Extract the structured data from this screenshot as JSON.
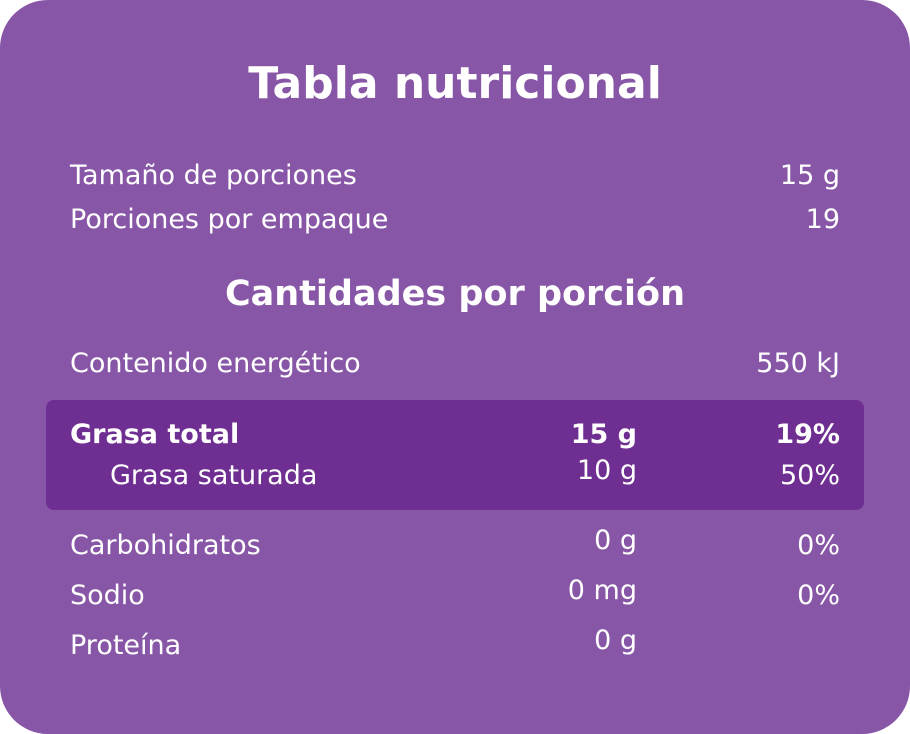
{
  "title": "Tabla nutricional",
  "serving": {
    "size_label": "Tamaño de porciones",
    "size_value": "15 g",
    "per_package_label": "Porciones por empaque",
    "per_package_value": "19"
  },
  "subtitle": "Cantidades por porción",
  "energy": {
    "label": "Contenido energético",
    "value": "550 kJ"
  },
  "fat": {
    "total_label": "Grasa total",
    "total_amount": "15 g",
    "total_pct": "19%",
    "saturated_label": "Grasa saturada",
    "saturated_amount": "10 g",
    "saturated_pct": "50%"
  },
  "rows": [
    {
      "label": "Carbohidratos",
      "amount": "0 g",
      "pct": "0%"
    },
    {
      "label": "Sodio",
      "amount": "0 mg",
      "pct": "0%"
    },
    {
      "label": "Proteína",
      "amount": "0 g",
      "pct": ""
    }
  ],
  "colors": {
    "card_background": "#8856a7",
    "highlight_background": "#6f2e91",
    "text": "#ffffff"
  }
}
